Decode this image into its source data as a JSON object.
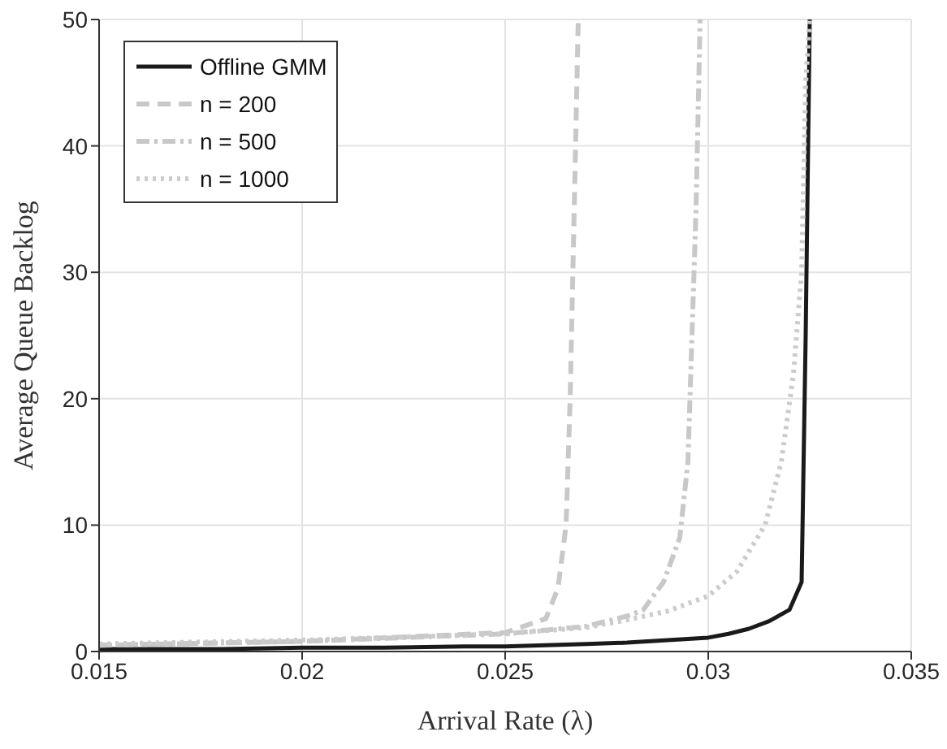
{
  "chart_data": {
    "type": "line",
    "xlabel": "Arrival Rate (λ)",
    "ylabel": "Average Queue Backlog",
    "xlim": [
      0.015,
      0.035
    ],
    "ylim": [
      0,
      50
    ],
    "xticks": [
      0.015,
      0.02,
      0.025,
      0.03,
      0.035
    ],
    "yticks": [
      0,
      10,
      20,
      30,
      40,
      50
    ],
    "grid": true,
    "legend": "top left",
    "marker": "none",
    "series": [
      {
        "name": "Offline GMM",
        "color": "#1a1a1a",
        "line_style": "solid",
        "x": [
          0.015,
          0.018,
          0.02,
          0.022,
          0.024,
          0.025,
          0.026,
          0.027,
          0.028,
          0.029,
          0.03,
          0.0305,
          0.031,
          0.0315,
          0.032,
          0.0323,
          0.0324,
          0.0325
        ],
        "values": [
          0.2,
          0.2,
          0.3,
          0.3,
          0.4,
          0.4,
          0.5,
          0.6,
          0.7,
          0.9,
          1.1,
          1.4,
          1.8,
          2.4,
          3.3,
          5.5,
          25,
          50
        ]
      },
      {
        "name": "n = 200",
        "color": "#c8c8c8",
        "line_style": "dashed",
        "x": [
          0.015,
          0.02,
          0.025,
          0.026,
          0.0263,
          0.0265,
          0.0266,
          0.0267,
          0.0268
        ],
        "values": [
          0.5,
          0.8,
          1.5,
          2.6,
          5,
          10,
          20,
          35,
          50
        ]
      },
      {
        "name": "n = 500",
        "color": "#c8c8c8",
        "line_style": "dashdot",
        "x": [
          0.015,
          0.02,
          0.025,
          0.027,
          0.028,
          0.0284,
          0.0289,
          0.0293,
          0.0295,
          0.0296,
          0.0297,
          0.0298
        ],
        "values": [
          0.5,
          0.8,
          1.4,
          2.0,
          2.8,
          3.3,
          5.5,
          9,
          15,
          25,
          35,
          50
        ]
      },
      {
        "name": "n = 1000",
        "color": "#cccccc",
        "line_style": "dotted",
        "x": [
          0.015,
          0.02,
          0.025,
          0.027,
          0.028,
          0.029,
          0.03,
          0.0307,
          0.0314,
          0.0318,
          0.0321,
          0.0323,
          0.0324,
          0.0325
        ],
        "values": [
          0.6,
          0.9,
          1.4,
          1.9,
          2.5,
          3.2,
          4.4,
          6.3,
          10,
          15,
          22,
          30,
          45,
          50
        ]
      }
    ]
  }
}
